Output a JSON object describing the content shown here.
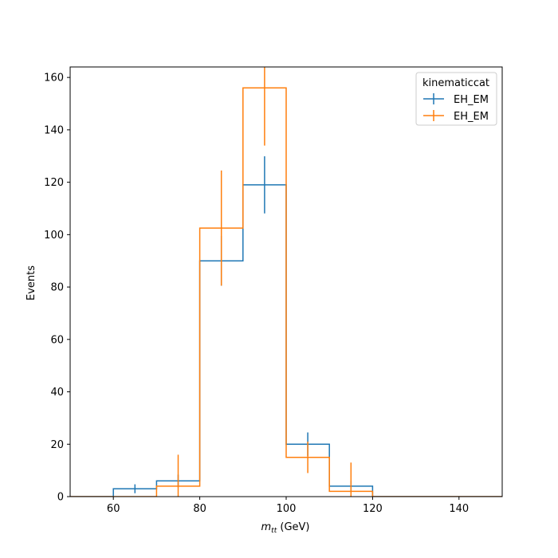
{
  "chart_data": {
    "type": "step",
    "bin_edges": [
      50,
      60,
      70,
      80,
      90,
      100,
      110,
      120,
      130,
      140,
      150
    ],
    "series": [
      {
        "name": "EH_EM",
        "color": "#1f77b4",
        "values": [
          0,
          3,
          6,
          90,
          119,
          20,
          4,
          0,
          0,
          0
        ],
        "errors": [
          0,
          1.7,
          2.4,
          9.5,
          10.9,
          4.5,
          2.0,
          0,
          0,
          0
        ]
      },
      {
        "name": "EH_EM",
        "color": "#ff7f0e",
        "values": [
          0,
          0,
          4,
          102.5,
          156,
          15,
          2,
          0,
          0,
          0
        ],
        "errors": [
          0,
          0,
          12,
          22,
          22,
          6,
          11,
          0,
          0,
          0
        ]
      }
    ],
    "xlim": [
      50,
      150
    ],
    "ylim": [
      0,
      164
    ],
    "x_ticks": [
      "60",
      "80",
      "100",
      "120",
      "140"
    ],
    "y_ticks": [
      "0",
      "20",
      "40",
      "60",
      "80",
      "100",
      "120",
      "140",
      "160"
    ],
    "xlabel_main": "m",
    "xlabel_sub": "tt",
    "xlabel_unit": " (GeV)",
    "ylabel": "Events",
    "legend_title": "kinematiccat",
    "legend_position": "top-right",
    "grid": false
  }
}
